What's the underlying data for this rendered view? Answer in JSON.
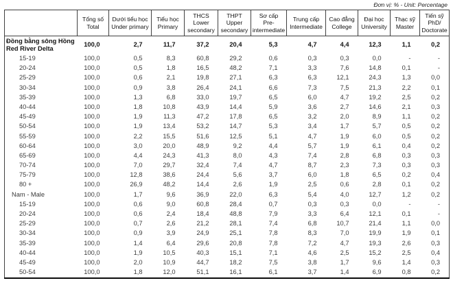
{
  "unit_note": "Đơn vị: % - Unit: Percentage",
  "table": {
    "corner": "",
    "columns": [
      {
        "vi": "Tổng số",
        "en": "Total"
      },
      {
        "vi": "Dưới tiểu học",
        "en": "Under primary"
      },
      {
        "vi": "Tiểu học",
        "en": "Primary"
      },
      {
        "vi": "THCS",
        "en": "Lower secondary"
      },
      {
        "vi": "THPT",
        "en": "Upper secondary"
      },
      {
        "vi": "Sơ cấp",
        "en": "Pre-intermediate"
      },
      {
        "vi": "Trung cấp",
        "en": "Intermediate"
      },
      {
        "vi": "Cao đẳng",
        "en": "College"
      },
      {
        "vi": "Đại học",
        "en": "University"
      },
      {
        "vi": "Thạc sỹ",
        "en": "Master"
      },
      {
        "vi": "Tiến sỹ",
        "en": "PhD/ Doctorate"
      }
    ],
    "rows": [
      {
        "label": "Đồng bằng sông Hồng",
        "label2": "Red River Delta",
        "level": 0,
        "bold": true,
        "values": [
          "100,0",
          "2,7",
          "11,7",
          "37,2",
          "20,4",
          "5,3",
          "4,7",
          "4,4",
          "12,3",
          "1,1",
          "0,2"
        ]
      },
      {
        "label": "15-19",
        "level": 2,
        "bold": false,
        "values": [
          "100,0",
          "0,5",
          "8,3",
          "60,8",
          "29,2",
          "0,6",
          "0,3",
          "0,3",
          "0,0",
          "-",
          "-"
        ]
      },
      {
        "label": "20-24",
        "level": 2,
        "bold": false,
        "values": [
          "100,0",
          "0,5",
          "1,8",
          "16,5",
          "48,2",
          "7,1",
          "3,3",
          "7,6",
          "14,8",
          "0,1",
          "-"
        ]
      },
      {
        "label": "25-29",
        "level": 2,
        "bold": false,
        "values": [
          "100,0",
          "0,6",
          "2,1",
          "19,8",
          "27,1",
          "6,3",
          "6,3",
          "12,1",
          "24,3",
          "1,3",
          "0,0"
        ]
      },
      {
        "label": "30-34",
        "level": 2,
        "bold": false,
        "values": [
          "100,0",
          "0,9",
          "3,8",
          "26,4",
          "24,1",
          "6,6",
          "7,3",
          "7,5",
          "21,3",
          "2,2",
          "0,1"
        ]
      },
      {
        "label": "35-39",
        "level": 2,
        "bold": false,
        "values": [
          "100,0",
          "1,3",
          "6,8",
          "33,0",
          "19,7",
          "6,5",
          "6,0",
          "4,7",
          "19,2",
          "2,5",
          "0,2"
        ]
      },
      {
        "label": "40-44",
        "level": 2,
        "bold": false,
        "values": [
          "100,0",
          "1,8",
          "10,8",
          "43,9",
          "14,4",
          "5,9",
          "3,6",
          "2,7",
          "14,6",
          "2,1",
          "0,3"
        ]
      },
      {
        "label": "45-49",
        "level": 2,
        "bold": false,
        "values": [
          "100,0",
          "1,9",
          "11,3",
          "47,2",
          "17,8",
          "6,5",
          "3,2",
          "2,0",
          "8,9",
          "1,1",
          "0,2"
        ]
      },
      {
        "label": "50-54",
        "level": 2,
        "bold": false,
        "values": [
          "100,0",
          "1,9",
          "13,4",
          "53,2",
          "14,7",
          "5,3",
          "3,4",
          "1,7",
          "5,7",
          "0,5",
          "0,2"
        ]
      },
      {
        "label": "55-59",
        "level": 2,
        "bold": false,
        "values": [
          "100,0",
          "2,2",
          "15,5",
          "51,6",
          "12,5",
          "5,1",
          "4,7",
          "1,9",
          "6,0",
          "0,5",
          "0,2"
        ]
      },
      {
        "label": "60-64",
        "level": 2,
        "bold": false,
        "values": [
          "100,0",
          "3,0",
          "20,0",
          "48,9",
          "9,2",
          "4,4",
          "5,7",
          "1,9",
          "6,1",
          "0,4",
          "0,2"
        ]
      },
      {
        "label": "65-69",
        "level": 2,
        "bold": false,
        "values": [
          "100,0",
          "4,4",
          "24,3",
          "41,3",
          "8,0",
          "4,3",
          "7,4",
          "2,8",
          "6,8",
          "0,3",
          "0,3"
        ]
      },
      {
        "label": "70-74",
        "level": 2,
        "bold": false,
        "values": [
          "100,0",
          "7,0",
          "29,7",
          "32,4",
          "7,4",
          "4,7",
          "8,7",
          "2,3",
          "7,3",
          "0,3",
          "0,3"
        ]
      },
      {
        "label": "75-79",
        "level": 2,
        "bold": false,
        "values": [
          "100,0",
          "12,8",
          "38,6",
          "24,4",
          "5,6",
          "3,7",
          "6,0",
          "1,8",
          "6,5",
          "0,2",
          "0,4"
        ]
      },
      {
        "label": "80 +",
        "level": 2,
        "bold": false,
        "values": [
          "100,0",
          "26,9",
          "48,2",
          "14,4",
          "2,6",
          "1,9",
          "2,5",
          "0,6",
          "2,8",
          "0,1",
          "0,2"
        ]
      },
      {
        "label": "Nam - Male",
        "level": 1,
        "bold": false,
        "values": [
          "100,0",
          "1,7",
          "9,6",
          "36,9",
          "22,0",
          "6,3",
          "5,4",
          "4,0",
          "12,7",
          "1,2",
          "0,2"
        ]
      },
      {
        "label": "15-19",
        "level": 2,
        "bold": false,
        "values": [
          "100,0",
          "0,6",
          "9,0",
          "60,8",
          "28,4",
          "0,7",
          "0,3",
          "0,3",
          "0,0",
          "-",
          "-"
        ]
      },
      {
        "label": "20-24",
        "level": 2,
        "bold": false,
        "values": [
          "100,0",
          "0,6",
          "2,4",
          "18,4",
          "48,8",
          "7,9",
          "3,3",
          "6,4",
          "12,1",
          "0,1",
          "-"
        ]
      },
      {
        "label": "25-29",
        "level": 2,
        "bold": false,
        "values": [
          "100,0",
          "0,7",
          "2,6",
          "21,2",
          "28,1",
          "7,4",
          "6,8",
          "10,7",
          "21,4",
          "1,1",
          "0,0"
        ]
      },
      {
        "label": "30-34",
        "level": 2,
        "bold": false,
        "values": [
          "100,0",
          "0,9",
          "3,9",
          "24,9",
          "25,1",
          "7,8",
          "8,3",
          "7,0",
          "19,9",
          "1,9",
          "0,1"
        ]
      },
      {
        "label": "35-39",
        "level": 2,
        "bold": false,
        "values": [
          "100,0",
          "1,4",
          "6,4",
          "29,6",
          "20,8",
          "7,8",
          "7,2",
          "4,7",
          "19,3",
          "2,6",
          "0,3"
        ]
      },
      {
        "label": "40-44",
        "level": 2,
        "bold": false,
        "values": [
          "100,0",
          "1,9",
          "10,5",
          "40,3",
          "15,1",
          "7,1",
          "4,6",
          "2,5",
          "15,2",
          "2,5",
          "0,4"
        ]
      },
      {
        "label": "45-49",
        "level": 2,
        "bold": false,
        "values": [
          "100,0",
          "2,0",
          "10,9",
          "44,7",
          "18,2",
          "7,5",
          "3,8",
          "1,7",
          "9,6",
          "1,4",
          "0,3"
        ]
      },
      {
        "label": "50-54",
        "level": 2,
        "bold": false,
        "values": [
          "100,0",
          "1,8",
          "12,0",
          "51,1",
          "16,1",
          "6,1",
          "3,7",
          "1,4",
          "6,9",
          "0,8",
          "0,2"
        ]
      }
    ]
  }
}
